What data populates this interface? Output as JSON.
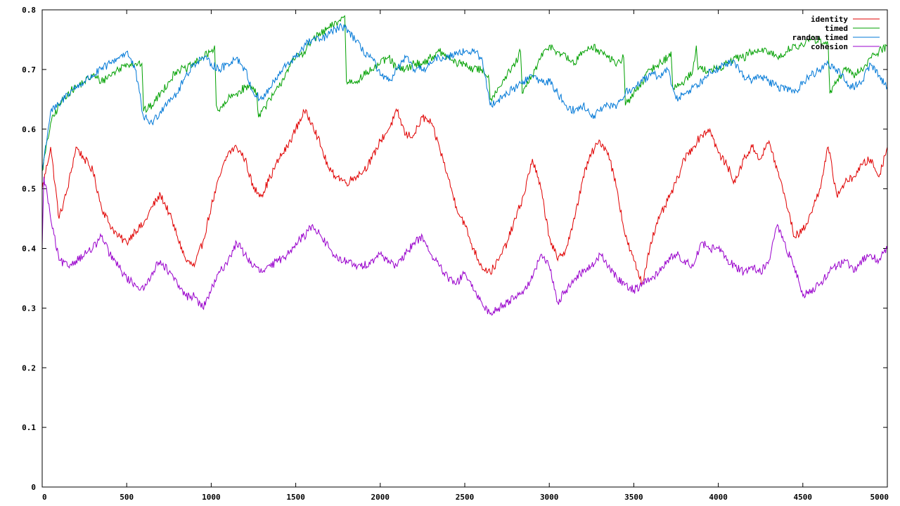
{
  "chart_data": {
    "type": "line",
    "title": "",
    "xlabel": "",
    "ylabel": "",
    "xlim": [
      0,
      5000
    ],
    "ylim": [
      0,
      0.8
    ],
    "x_ticks": [
      0,
      500,
      1000,
      1500,
      2000,
      2500,
      3000,
      3500,
      4000,
      4500,
      5000
    ],
    "y_ticks": [
      "0",
      "0.1",
      "0.2",
      "0.3",
      "0.4",
      "0.5",
      "0.6",
      "0.7",
      "0.8"
    ],
    "y_tick_values": [
      0,
      0.1,
      0.2,
      0.3,
      0.4,
      0.5,
      0.6,
      0.7,
      0.8
    ],
    "grid": false,
    "legend_position": "top-right",
    "series": [
      {
        "name": "identity",
        "color": "#e00000",
        "x": [
          0,
          50,
          100,
          150,
          200,
          250,
          300,
          350,
          400,
          450,
          500,
          550,
          600,
          650,
          700,
          750,
          800,
          850,
          900,
          950,
          1000,
          1050,
          1100,
          1150,
          1200,
          1250,
          1300,
          1350,
          1400,
          1450,
          1500,
          1550,
          1600,
          1650,
          1700,
          1750,
          1800,
          1850,
          1900,
          1950,
          2000,
          2050,
          2100,
          2150,
          2200,
          2250,
          2300,
          2350,
          2400,
          2450,
          2500,
          2550,
          2600,
          2650,
          2700,
          2750,
          2800,
          2850,
          2900,
          2950,
          3000,
          3050,
          3100,
          3150,
          3200,
          3250,
          3300,
          3350,
          3400,
          3450,
          3500,
          3550,
          3600,
          3650,
          3700,
          3750,
          3800,
          3850,
          3900,
          3950,
          4000,
          4050,
          4100,
          4150,
          4200,
          4250,
          4300,
          4350,
          4400,
          4450,
          4500,
          4550,
          4600,
          4650,
          4700,
          4750,
          4800,
          4850,
          4900,
          4950,
          5000
        ],
        "values": [
          0.5,
          0.57,
          0.45,
          0.5,
          0.57,
          0.55,
          0.53,
          0.47,
          0.44,
          0.42,
          0.41,
          0.43,
          0.44,
          0.47,
          0.49,
          0.46,
          0.42,
          0.38,
          0.37,
          0.41,
          0.47,
          0.52,
          0.56,
          0.57,
          0.55,
          0.5,
          0.49,
          0.52,
          0.55,
          0.57,
          0.6,
          0.63,
          0.61,
          0.57,
          0.53,
          0.52,
          0.51,
          0.52,
          0.53,
          0.55,
          0.58,
          0.6,
          0.63,
          0.59,
          0.59,
          0.62,
          0.61,
          0.57,
          0.52,
          0.47,
          0.44,
          0.4,
          0.37,
          0.36,
          0.38,
          0.41,
          0.45,
          0.49,
          0.55,
          0.5,
          0.42,
          0.38,
          0.4,
          0.45,
          0.52,
          0.56,
          0.58,
          0.56,
          0.5,
          0.42,
          0.38,
          0.34,
          0.41,
          0.45,
          0.48,
          0.51,
          0.55,
          0.57,
          0.59,
          0.6,
          0.56,
          0.54,
          0.51,
          0.55,
          0.57,
          0.55,
          0.58,
          0.53,
          0.48,
          0.42,
          0.43,
          0.46,
          0.5,
          0.57,
          0.49,
          0.51,
          0.52,
          0.54,
          0.55,
          0.52,
          0.57
        ]
      },
      {
        "name": "timed",
        "color": "#00a000",
        "x": [
          0,
          50,
          100,
          150,
          200,
          250,
          300,
          350,
          400,
          450,
          500,
          550,
          590,
          600,
          650,
          700,
          750,
          800,
          850,
          900,
          950,
          1000,
          1020,
          1030,
          1050,
          1100,
          1150,
          1200,
          1250,
          1270,
          1280,
          1300,
          1350,
          1400,
          1450,
          1500,
          1550,
          1600,
          1650,
          1700,
          1750,
          1790,
          1800,
          1850,
          1900,
          1950,
          2000,
          2050,
          2100,
          2150,
          2200,
          2250,
          2300,
          2350,
          2400,
          2450,
          2500,
          2550,
          2600,
          2640,
          2650,
          2700,
          2750,
          2800,
          2830,
          2840,
          2900,
          2950,
          3000,
          3050,
          3100,
          3150,
          3200,
          3250,
          3300,
          3350,
          3400,
          3440,
          3450,
          3500,
          3550,
          3600,
          3650,
          3700,
          3720,
          3730,
          3750,
          3800,
          3850,
          3870,
          3880,
          3900,
          3950,
          4000,
          4050,
          4100,
          4150,
          4200,
          4250,
          4300,
          4350,
          4400,
          4450,
          4500,
          4550,
          4600,
          4650,
          4660,
          4700,
          4750,
          4800,
          4850,
          4900,
          4950,
          5000
        ],
        "values": [
          0.53,
          0.61,
          0.64,
          0.66,
          0.67,
          0.68,
          0.69,
          0.68,
          0.69,
          0.7,
          0.71,
          0.71,
          0.71,
          0.63,
          0.64,
          0.66,
          0.68,
          0.7,
          0.7,
          0.71,
          0.72,
          0.73,
          0.74,
          0.64,
          0.63,
          0.65,
          0.66,
          0.67,
          0.67,
          0.66,
          0.62,
          0.63,
          0.65,
          0.67,
          0.7,
          0.72,
          0.73,
          0.75,
          0.76,
          0.77,
          0.78,
          0.79,
          0.68,
          0.68,
          0.69,
          0.7,
          0.71,
          0.72,
          0.7,
          0.7,
          0.71,
          0.71,
          0.72,
          0.73,
          0.72,
          0.71,
          0.71,
          0.7,
          0.7,
          0.69,
          0.65,
          0.67,
          0.69,
          0.71,
          0.73,
          0.66,
          0.69,
          0.72,
          0.74,
          0.73,
          0.72,
          0.71,
          0.73,
          0.74,
          0.73,
          0.72,
          0.71,
          0.72,
          0.64,
          0.66,
          0.68,
          0.7,
          0.71,
          0.72,
          0.73,
          0.67,
          0.67,
          0.68,
          0.7,
          0.74,
          0.7,
          0.7,
          0.7,
          0.7,
          0.71,
          0.72,
          0.72,
          0.73,
          0.73,
          0.73,
          0.72,
          0.73,
          0.74,
          0.74,
          0.75,
          0.75,
          0.74,
          0.66,
          0.68,
          0.7,
          0.69,
          0.7,
          0.72,
          0.73,
          0.74
        ]
      },
      {
        "name": "random timed",
        "color": "#0078d7",
        "x": [
          0,
          50,
          100,
          150,
          200,
          250,
          300,
          350,
          400,
          450,
          500,
          550,
          600,
          650,
          700,
          750,
          800,
          850,
          900,
          950,
          1000,
          1050,
          1100,
          1150,
          1200,
          1250,
          1300,
          1350,
          1400,
          1450,
          1500,
          1550,
          1600,
          1650,
          1700,
          1750,
          1790,
          1800,
          1850,
          1900,
          1950,
          2000,
          2050,
          2100,
          2150,
          2200,
          2250,
          2300,
          2350,
          2400,
          2450,
          2500,
          2550,
          2600,
          2650,
          2700,
          2750,
          2800,
          2850,
          2900,
          2950,
          3000,
          3050,
          3100,
          3150,
          3200,
          3250,
          3300,
          3350,
          3400,
          3450,
          3500,
          3550,
          3600,
          3650,
          3700,
          3750,
          3800,
          3850,
          3900,
          3950,
          4000,
          4050,
          4100,
          4150,
          4200,
          4250,
          4300,
          4350,
          4400,
          4450,
          4500,
          4550,
          4600,
          4650,
          4700,
          4750,
          4800,
          4850,
          4900,
          4950,
          5000
        ],
        "values": [
          0.53,
          0.63,
          0.64,
          0.66,
          0.67,
          0.68,
          0.69,
          0.7,
          0.71,
          0.72,
          0.73,
          0.7,
          0.62,
          0.61,
          0.63,
          0.65,
          0.66,
          0.69,
          0.71,
          0.72,
          0.71,
          0.7,
          0.71,
          0.72,
          0.7,
          0.66,
          0.65,
          0.67,
          0.69,
          0.71,
          0.72,
          0.74,
          0.75,
          0.75,
          0.76,
          0.77,
          0.77,
          0.77,
          0.75,
          0.73,
          0.72,
          0.69,
          0.68,
          0.7,
          0.72,
          0.7,
          0.7,
          0.71,
          0.72,
          0.72,
          0.73,
          0.73,
          0.73,
          0.72,
          0.64,
          0.65,
          0.66,
          0.67,
          0.68,
          0.69,
          0.68,
          0.68,
          0.66,
          0.64,
          0.63,
          0.64,
          0.62,
          0.63,
          0.64,
          0.64,
          0.66,
          0.67,
          0.68,
          0.69,
          0.69,
          0.7,
          0.65,
          0.66,
          0.67,
          0.68,
          0.7,
          0.7,
          0.71,
          0.71,
          0.69,
          0.68,
          0.69,
          0.68,
          0.67,
          0.67,
          0.66,
          0.68,
          0.69,
          0.7,
          0.71,
          0.7,
          0.68,
          0.67,
          0.68,
          0.71,
          0.69,
          0.67
        ]
      },
      {
        "name": "cohesion",
        "color": "#9900cc",
        "x": [
          0,
          10,
          30,
          50,
          100,
          150,
          200,
          250,
          300,
          350,
          400,
          450,
          500,
          550,
          600,
          650,
          700,
          750,
          800,
          850,
          900,
          950,
          1000,
          1050,
          1100,
          1150,
          1200,
          1250,
          1300,
          1350,
          1400,
          1450,
          1500,
          1550,
          1600,
          1650,
          1700,
          1750,
          1800,
          1850,
          1900,
          1950,
          2000,
          2050,
          2100,
          2150,
          2200,
          2250,
          2300,
          2350,
          2400,
          2450,
          2500,
          2550,
          2600,
          2650,
          2700,
          2750,
          2800,
          2850,
          2900,
          2950,
          3000,
          3050,
          3100,
          3150,
          3200,
          3250,
          3300,
          3350,
          3400,
          3450,
          3500,
          3550,
          3600,
          3650,
          3700,
          3750,
          3800,
          3850,
          3900,
          3950,
          4000,
          4050,
          4100,
          4150,
          4200,
          4250,
          4300,
          4350,
          4400,
          4450,
          4500,
          4550,
          4600,
          4650,
          4700,
          4750,
          4800,
          4850,
          4900,
          4950,
          5000
        ],
        "values": [
          0.4,
          0.52,
          0.49,
          0.45,
          0.38,
          0.37,
          0.38,
          0.39,
          0.4,
          0.42,
          0.39,
          0.37,
          0.35,
          0.34,
          0.33,
          0.36,
          0.38,
          0.36,
          0.34,
          0.32,
          0.32,
          0.3,
          0.33,
          0.36,
          0.38,
          0.41,
          0.39,
          0.37,
          0.36,
          0.37,
          0.38,
          0.39,
          0.41,
          0.42,
          0.44,
          0.42,
          0.4,
          0.38,
          0.38,
          0.37,
          0.37,
          0.38,
          0.39,
          0.38,
          0.37,
          0.39,
          0.41,
          0.42,
          0.39,
          0.37,
          0.35,
          0.34,
          0.36,
          0.33,
          0.31,
          0.29,
          0.3,
          0.31,
          0.32,
          0.33,
          0.35,
          0.39,
          0.37,
          0.31,
          0.33,
          0.35,
          0.36,
          0.37,
          0.39,
          0.37,
          0.35,
          0.34,
          0.33,
          0.34,
          0.35,
          0.36,
          0.38,
          0.39,
          0.38,
          0.37,
          0.41,
          0.4,
          0.4,
          0.38,
          0.37,
          0.36,
          0.37,
          0.36,
          0.38,
          0.44,
          0.4,
          0.37,
          0.32,
          0.33,
          0.34,
          0.36,
          0.37,
          0.38,
          0.36,
          0.38,
          0.39,
          0.38,
          0.4
        ]
      }
    ]
  }
}
